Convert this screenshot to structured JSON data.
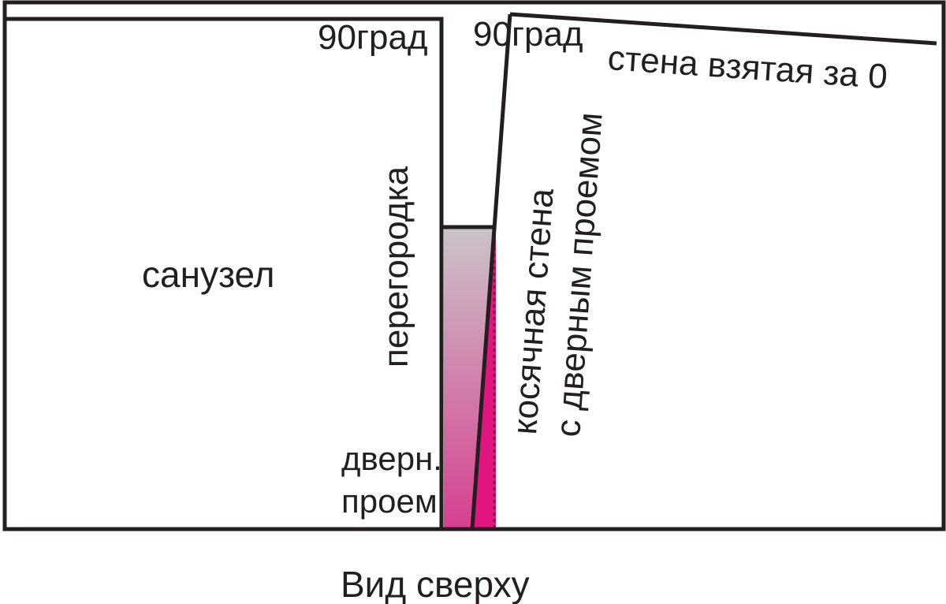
{
  "labels": {
    "angle_left": "90град",
    "angle_right": "90град",
    "reference_wall": "стена взятая за 0",
    "partition": "перегородка",
    "bathroom": "санузел",
    "skewed_wall_line1": "косячная стена",
    "skewed_wall_line2": "с дверным проемом",
    "door_line1": "дверн.",
    "door_line2": "проем",
    "caption": "Вид сверху"
  },
  "colors": {
    "line": "#231f20",
    "fill_top": "#cbc3c9",
    "fill_bottom": "#d6408f",
    "wedge": "#e0157f",
    "dotted": "#8b1a1a"
  }
}
